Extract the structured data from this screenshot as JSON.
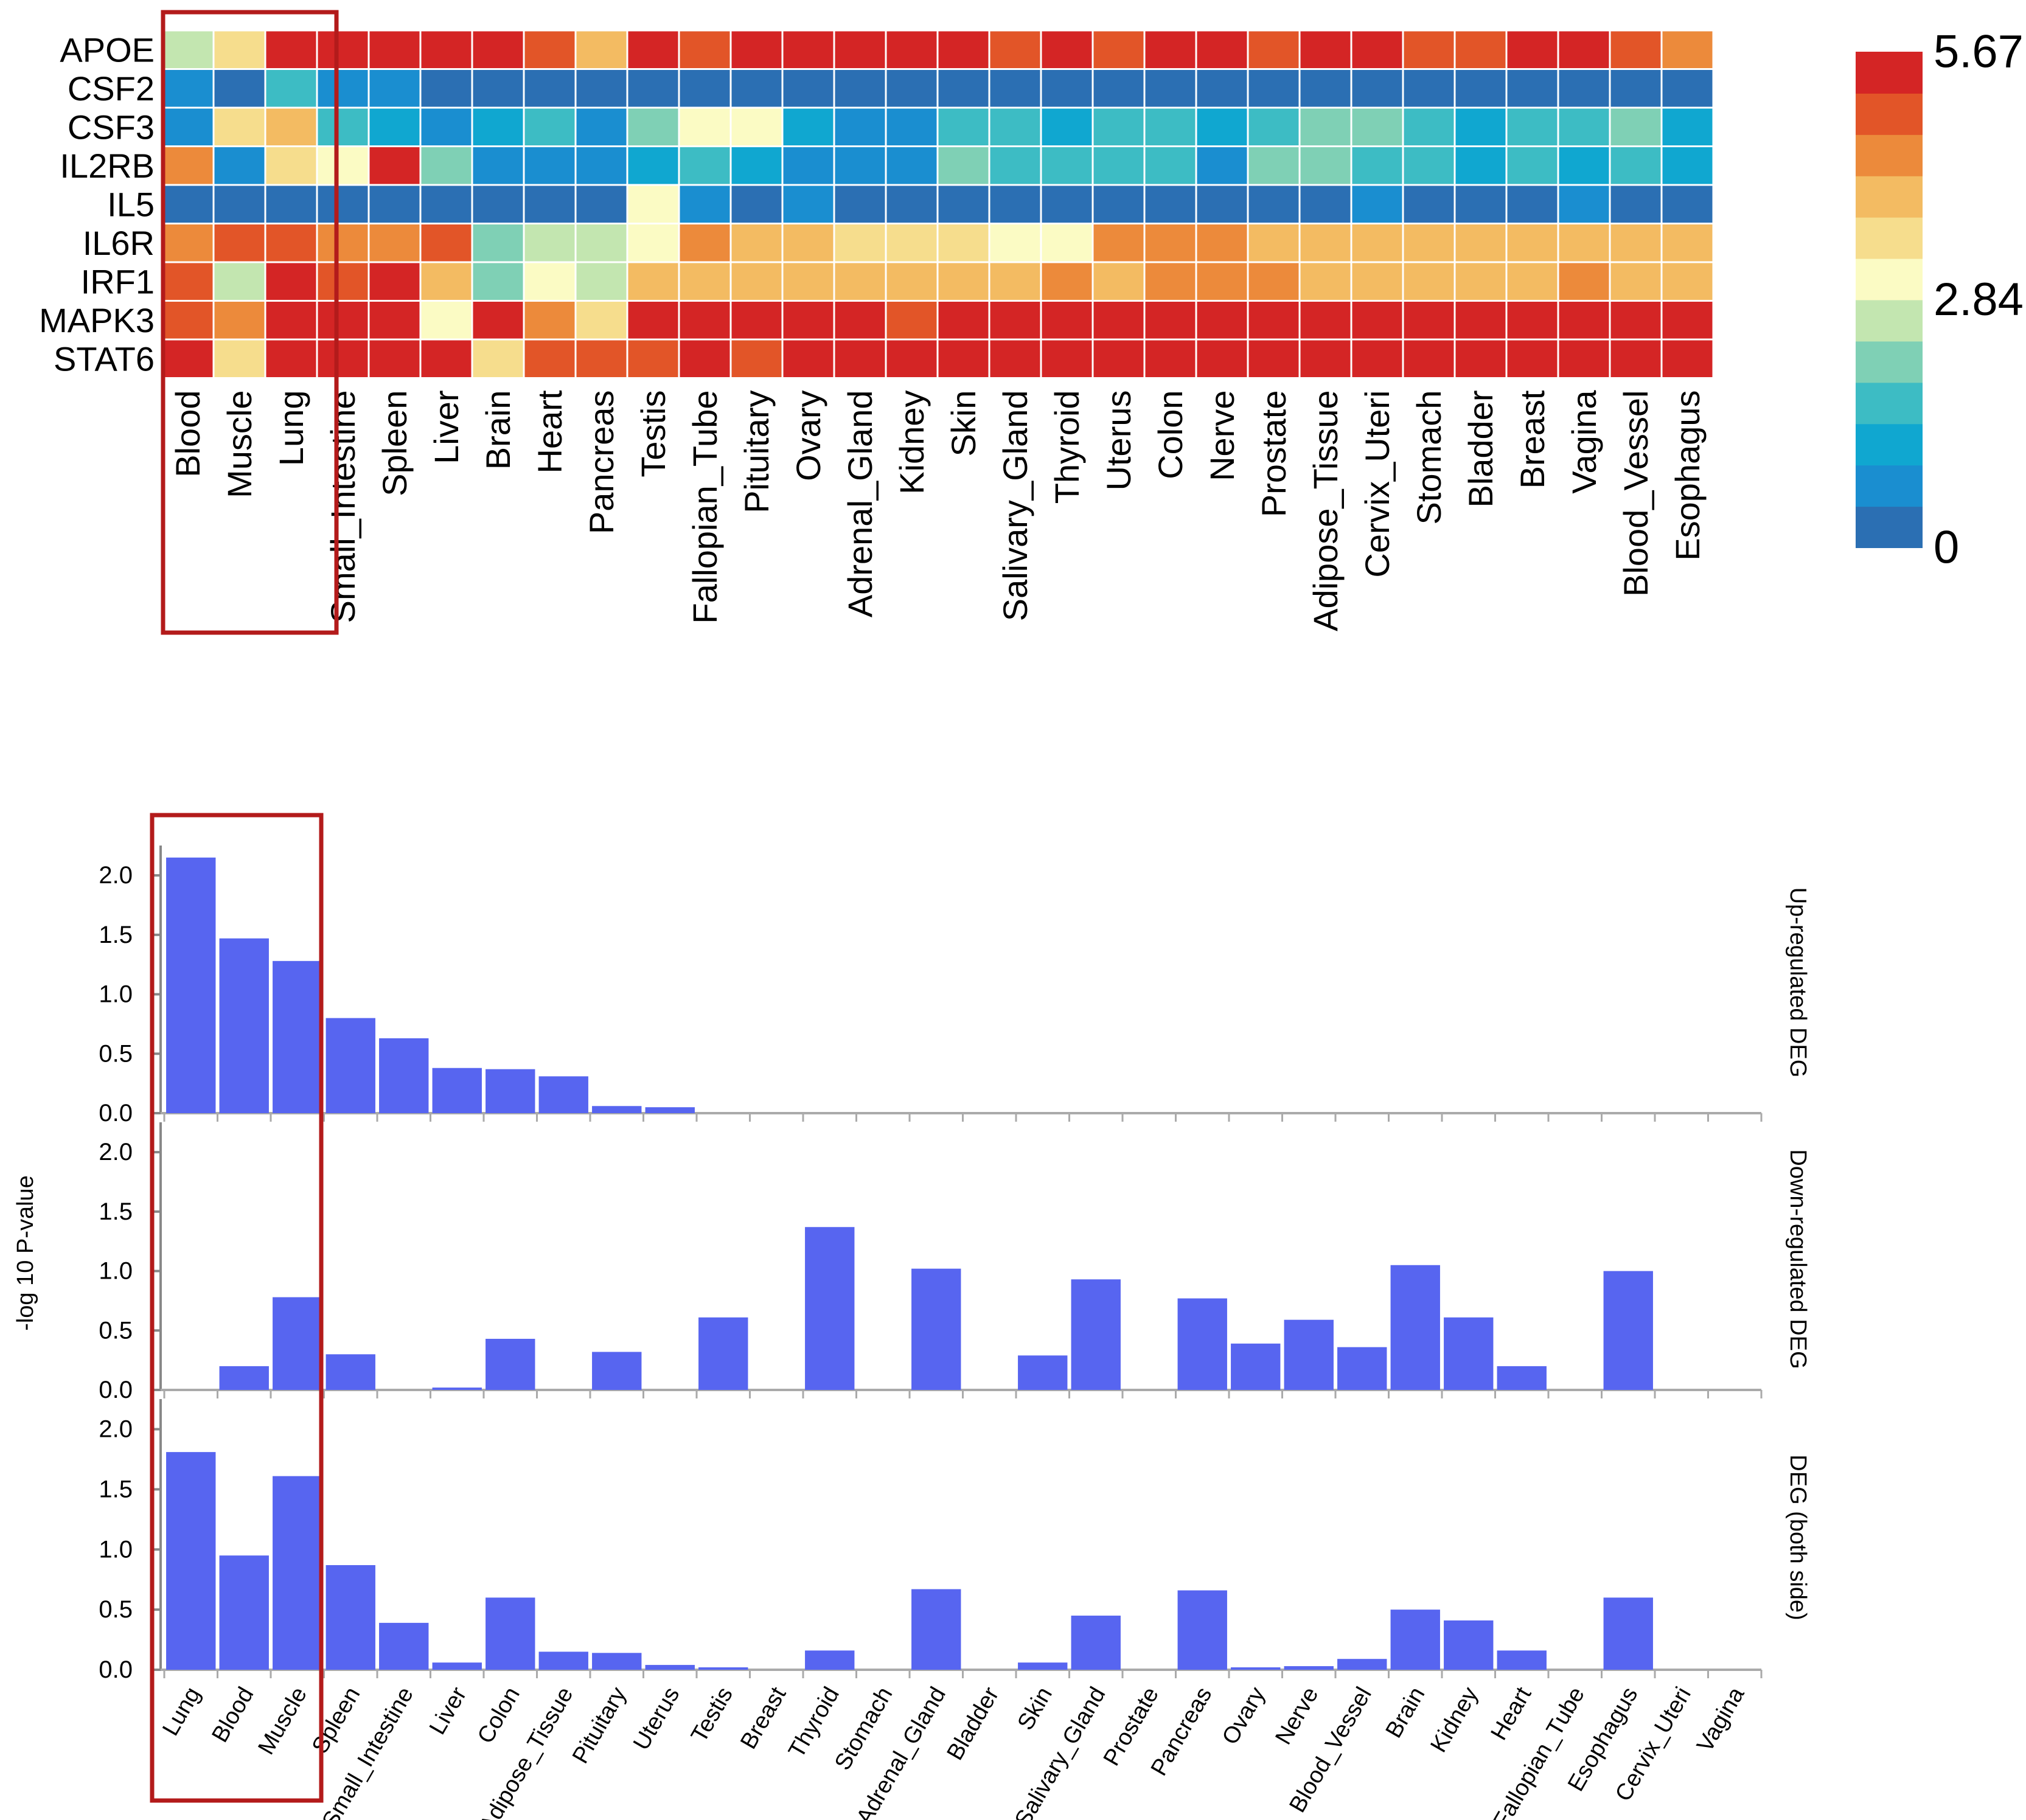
{
  "chart_data": [
    {
      "type": "heatmap",
      "title": "",
      "genes": [
        "APOE",
        "CSF2",
        "CSF3",
        "IL2RB",
        "IL5",
        "IL6R",
        "IRF1",
        "MAPK3",
        "STAT6"
      ],
      "tissues": [
        "Blood",
        "Muscle",
        "Lung",
        "Small_Intestine",
        "Spleen",
        "Liver",
        "Brain",
        "Heart",
        "Pancreas",
        "Testis",
        "Fallopian_Tube",
        "Pituitary",
        "Ovary",
        "Adrenal_Gland",
        "Kidney",
        "Skin",
        "Salivary_Gland",
        "Thyroid",
        "Uterus",
        "Colon",
        "Nerve",
        "Prostate",
        "Adipose_Tissue",
        "Cervix_Uteri",
        "Stomach",
        "Bladder",
        "Breast",
        "Vagina",
        "Blood_Vessel",
        "Esophagus"
      ],
      "values": [
        [
          2.4,
          3.6,
          5.5,
          5.4,
          5.5,
          5.5,
          5.5,
          4.8,
          3.9,
          5.6,
          5.0,
          5.3,
          5.4,
          5.4,
          5.4,
          5.2,
          5.1,
          5.6,
          4.9,
          5.3,
          5.2,
          4.9,
          5.5,
          5.4,
          5.0,
          5.1,
          5.6,
          5.2,
          4.8,
          4.3
        ],
        [
          0.5,
          0.3,
          1.6,
          0.6,
          0.5,
          0.3,
          0.3,
          0.2,
          0.3,
          0.3,
          0.3,
          0.2,
          0.2,
          0.3,
          0.3,
          0.2,
          0.2,
          0.3,
          0.2,
          0.3,
          0.3,
          0.2,
          0.3,
          0.3,
          0.3,
          0.3,
          0.3,
          0.2,
          0.3,
          0.3
        ],
        [
          0.6,
          3.5,
          4.2,
          1.5,
          1.2,
          0.6,
          1.3,
          1.7,
          0.7,
          2.0,
          3.1,
          2.9,
          1.0,
          0.7,
          0.8,
          1.5,
          1.5,
          1.3,
          1.5,
          1.6,
          1.4,
          1.6,
          2.2,
          2.1,
          1.5,
          1.4,
          1.6,
          1.8,
          2.3,
          1.4
        ],
        [
          4.5,
          0.6,
          3.5,
          3.3,
          5.2,
          2.3,
          0.5,
          0.8,
          0.6,
          1.3,
          1.8,
          1.1,
          0.8,
          0.7,
          0.8,
          2.0,
          1.7,
          1.7,
          1.5,
          1.6,
          0.9,
          2.2,
          2.0,
          1.6,
          1.6,
          1.4,
          1.7,
          1.4,
          1.6,
          1.2
        ],
        [
          0.3,
          0.4,
          0.4,
          0.3,
          0.3,
          0.4,
          0.3,
          0.3,
          0.4,
          2.9,
          0.5,
          0.4,
          0.5,
          0.4,
          0.4,
          0.4,
          0.4,
          0.4,
          0.4,
          0.4,
          0.3,
          0.4,
          0.4,
          0.5,
          0.4,
          0.4,
          0.4,
          0.5,
          0.4,
          0.4
        ],
        [
          4.5,
          5.0,
          4.9,
          4.6,
          4.4,
          5.0,
          2.2,
          2.6,
          2.4,
          2.9,
          4.7,
          4.0,
          4.0,
          3.5,
          3.5,
          3.4,
          3.0,
          3.0,
          4.5,
          4.4,
          4.3,
          4.0,
          4.2,
          4.2,
          4.0,
          4.0,
          4.0,
          3.8,
          4.0,
          4.1
        ],
        [
          5.0,
          2.5,
          5.2,
          5.1,
          5.6,
          3.9,
          2.1,
          2.9,
          2.4,
          3.8,
          4.2,
          4.0,
          4.0,
          3.9,
          3.9,
          3.8,
          3.9,
          4.4,
          4.2,
          4.3,
          4.4,
          4.6,
          4.2,
          4.2,
          4.2,
          3.9,
          4.0,
          4.3,
          3.8,
          4.1
        ],
        [
          5.1,
          4.3,
          5.5,
          5.5,
          5.4,
          3.1,
          5.4,
          4.6,
          3.5,
          5.2,
          5.6,
          5.4,
          5.6,
          5.3,
          4.8,
          5.6,
          5.3,
          5.6,
          5.6,
          5.5,
          5.6,
          5.3,
          5.6,
          5.6,
          5.6,
          5.6,
          5.6,
          5.6,
          5.6,
          5.4
        ],
        [
          5.5,
          3.7,
          5.6,
          5.5,
          5.5,
          5.2,
          3.6,
          4.9,
          4.8,
          5.0,
          5.6,
          4.9,
          5.6,
          5.6,
          5.3,
          5.6,
          5.6,
          5.6,
          5.6,
          5.6,
          5.6,
          5.6,
          5.6,
          5.6,
          5.6,
          5.6,
          5.6,
          5.6,
          5.6,
          5.6
        ]
      ],
      "colorbar": {
        "min": 0,
        "max": 5.67,
        "tick_labels": [
          "5.67",
          "2.84",
          "0"
        ],
        "colors": [
          "#2b6fb3",
          "#1a8ed0",
          "#10a7d0",
          "#3dbcc4",
          "#7fd0b5",
          "#c3e6b0",
          "#fbfbc4",
          "#f6dd8d",
          "#f3bb62",
          "#ec8a3b",
          "#e25528",
          "#d42525"
        ]
      },
      "highlight_tissues": [
        "Blood",
        "Muscle",
        "Lung"
      ],
      "highlight_color": "#b31b1b"
    },
    {
      "type": "bar",
      "shared_ylabel": "-log 10 P-value",
      "bar_color": "#5765f0",
      "categories": [
        "Lung",
        "Blood",
        "Muscle",
        "Spleen",
        "Small_Intestine",
        "Liver",
        "Colon",
        "Adipose_Tissue",
        "Pituitary",
        "Uterus",
        "Testis",
        "Breast",
        "Thyroid",
        "Stomach",
        "Adrenal_Gland",
        "Bladder",
        "Skin",
        "Salivary_Gland",
        "Prostate",
        "Pancreas",
        "Ovary",
        "Nerve",
        "Blood_Vessel",
        "Brain",
        "Kidney",
        "Heart",
        "Fallopian_Tube",
        "Esophagus",
        "Cervix_Uteri",
        "Vagina"
      ],
      "ylim": [
        0,
        2.2
      ],
      "y_ticks": [
        "0.0",
        "0.5",
        "1.0",
        "1.5",
        "2.0"
      ],
      "highlight_categories": [
        "Lung",
        "Blood",
        "Muscle"
      ],
      "series": [
        {
          "name": "Up-regulated DEG",
          "values": [
            2.15,
            1.47,
            1.28,
            0.8,
            0.63,
            0.38,
            0.37,
            0.31,
            0.06,
            0.05,
            0,
            0,
            0,
            0,
            0,
            0,
            0,
            0,
            0,
            0,
            0,
            0,
            0,
            0,
            0,
            0,
            0,
            0,
            0,
            0
          ]
        },
        {
          "name": "Down-regulated DEG",
          "values": [
            0,
            0.2,
            0.78,
            0.3,
            0,
            0.02,
            0.43,
            0,
            0.32,
            0,
            0.61,
            0,
            1.37,
            0,
            1.02,
            0,
            0.29,
            0.93,
            0,
            0.77,
            0.39,
            0.59,
            0.36,
            1.05,
            0.61,
            0.2,
            0,
            1.0,
            0,
            0
          ]
        },
        {
          "name": "DEG (both side)",
          "values": [
            1.81,
            0.95,
            1.61,
            0.87,
            0.39,
            0.06,
            0.6,
            0.15,
            0.14,
            0.04,
            0.02,
            0,
            0.16,
            0,
            0.67,
            0,
            0.06,
            0.45,
            0,
            0.66,
            0.02,
            0.03,
            0.09,
            0.5,
            0.41,
            0.16,
            0,
            0.6,
            0,
            0
          ]
        }
      ]
    }
  ]
}
